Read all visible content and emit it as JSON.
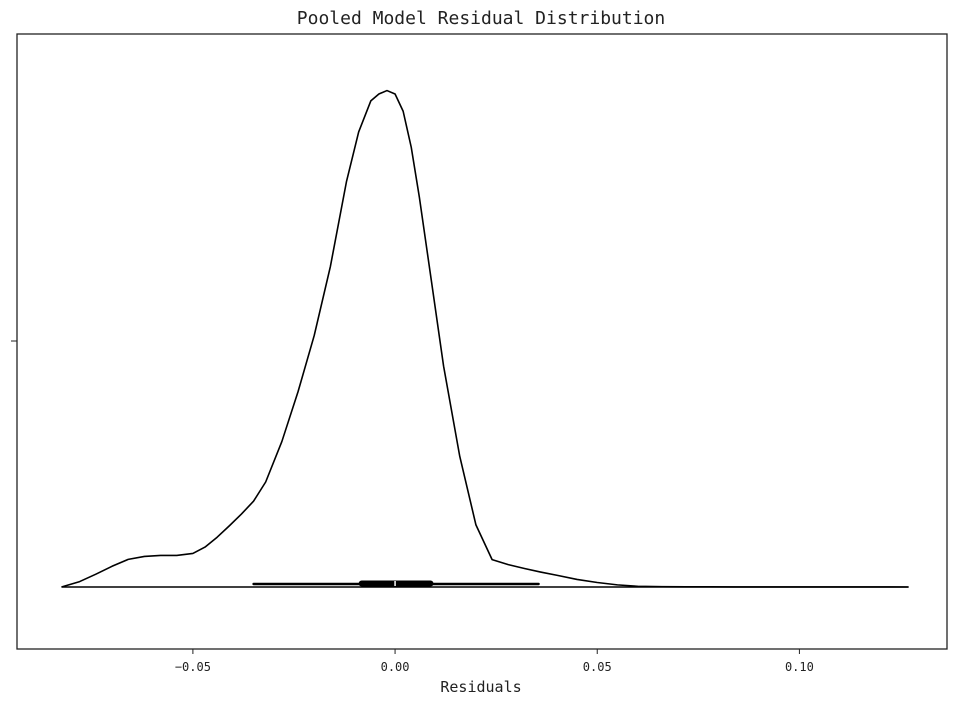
{
  "chart_data": {
    "type": "violin",
    "orientation": "horizontal",
    "title": "Pooled Model Residual Distribution",
    "xlabel": "Residuals",
    "ylabel": "",
    "xlim": [
      -0.0935,
      0.1365
    ],
    "xticks": [
      -0.05,
      0.0,
      0.05,
      0.1
    ],
    "xtick_labels": [
      "−0.05",
      "0.00",
      "0.05",
      "0.10"
    ],
    "yticks": [
      ""
    ],
    "grid": false,
    "legend": null,
    "density_upper_half": {
      "x": [
        -0.0825,
        -0.078,
        -0.074,
        -0.07,
        -0.066,
        -0.062,
        -0.058,
        -0.054,
        -0.05,
        -0.047,
        -0.044,
        -0.041,
        -0.038,
        -0.035,
        -0.032,
        -0.028,
        -0.024,
        -0.02,
        -0.016,
        -0.012,
        -0.009,
        -0.006,
        -0.004,
        -0.002,
        0.0,
        0.002,
        0.004,
        0.006,
        0.009,
        0.012,
        0.016,
        0.02,
        0.024,
        0.028,
        0.032,
        0.036,
        0.04,
        0.045,
        0.05,
        0.055,
        0.06,
        0.066,
        0.072,
        0.078,
        0.084,
        0.09,
        0.096,
        0.1,
        0.106,
        0.112,
        0.118,
        0.122,
        0.127
      ],
      "y": [
        0.0,
        0.011,
        0.026,
        0.042,
        0.056,
        0.062,
        0.064,
        0.064,
        0.068,
        0.081,
        0.101,
        0.124,
        0.148,
        0.174,
        0.213,
        0.295,
        0.396,
        0.51,
        0.65,
        0.823,
        0.923,
        0.986,
        1.0,
        1.007,
        1.0,
        0.965,
        0.892,
        0.791,
        0.62,
        0.448,
        0.265,
        0.126,
        0.0555,
        0.0454,
        0.0375,
        0.0303,
        0.0238,
        0.0153,
        0.0091,
        0.0043,
        0.0013,
        0.0007,
        0.0004,
        0.0003,
        0.0002,
        0.0001,
        0.0001,
        0.0001,
        0.0001,
        0.0001,
        0.0001,
        0.0001,
        0.0
      ]
    },
    "box": {
      "whisker_low": -0.035,
      "q1": -0.009,
      "median": 0.0,
      "q3": 0.0095,
      "whisker_high": 0.0355
    },
    "colors": {
      "line": "#000000",
      "frame": "#222222",
      "median": "#ffffff"
    }
  }
}
